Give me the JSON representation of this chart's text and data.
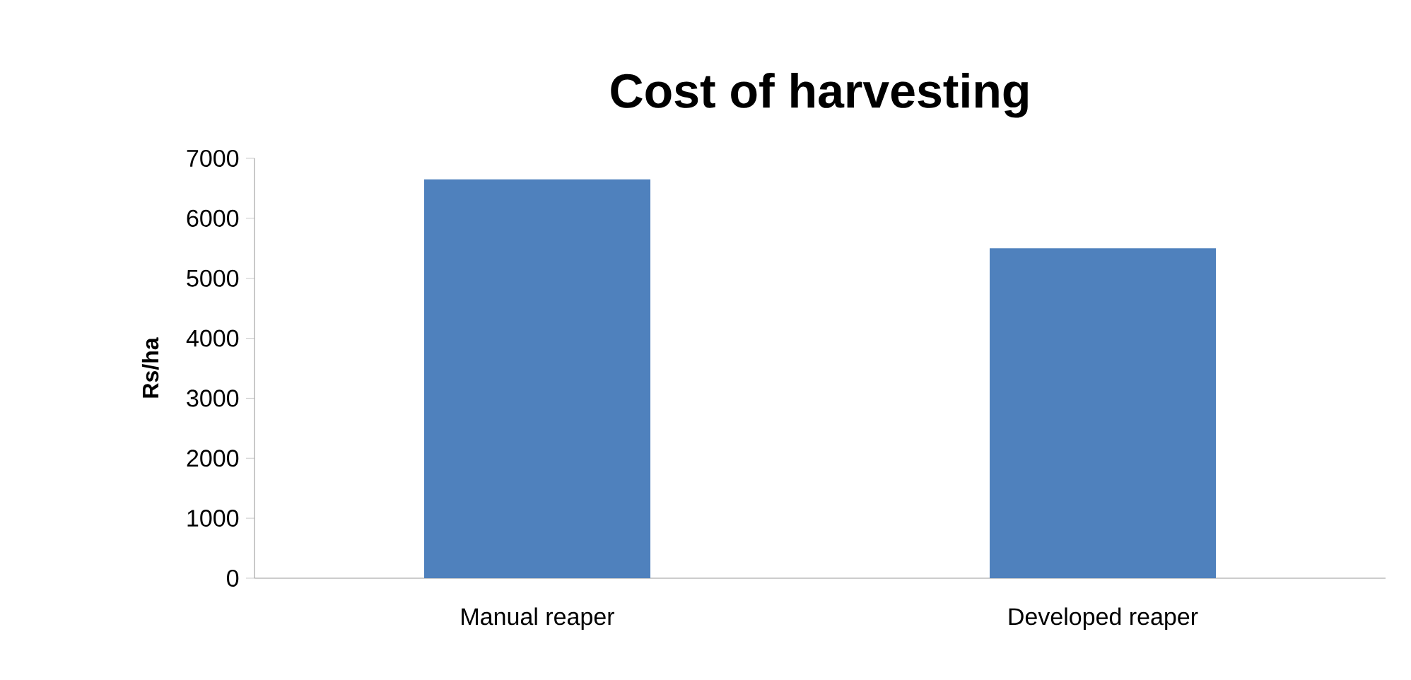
{
  "chart_data": {
    "type": "bar",
    "title": "Cost of harvesting",
    "ylabel": "Rs/ha",
    "categories": [
      "Manual reaper",
      "Developed reaper"
    ],
    "values": [
      6650,
      5500
    ],
    "color": "#4f81bd",
    "ylim": [
      0,
      7000
    ],
    "yticks": [
      0,
      1000,
      2000,
      3000,
      4000,
      5000,
      6000,
      7000
    ],
    "grid": false
  }
}
